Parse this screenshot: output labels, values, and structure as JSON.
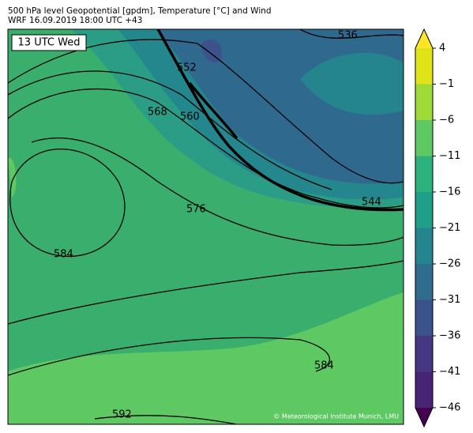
{
  "header": {
    "title": "500 hPa level Geopotential [gpdm], Temperature [°C] and Wind",
    "subtitle": "WRF 16.09.2019 18:00 UTC +43"
  },
  "map": {
    "time_label": "13 UTC Wed",
    "contour_labels": [
      "536",
      "552",
      "568",
      "560",
      "576",
      "544",
      "584",
      "584",
      "592"
    ],
    "credit": "© Meteorological Institute Munich, LMU"
  },
  "colorbar": {
    "ticks": [
      "4",
      "−1",
      "−6",
      "−11",
      "−16",
      "−21",
      "−26",
      "−31",
      "−36",
      "−41",
      "−46"
    ],
    "colors": [
      "#fde725",
      "#dfe318",
      "#a0da39",
      "#5ec962",
      "#2db27d",
      "#1f9e89",
      "#25858e",
      "#2f6c8e",
      "#3b528b",
      "#453781",
      "#482475",
      "#440154"
    ]
  }
}
